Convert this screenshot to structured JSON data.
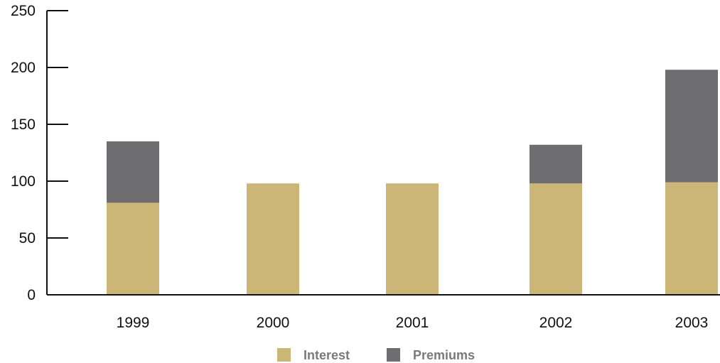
{
  "chart_data": {
    "type": "bar",
    "stacked": true,
    "categories": [
      "1999",
      "2000",
      "2001",
      "2002",
      "2003"
    ],
    "series": [
      {
        "name": "Interest",
        "color": "#cbb677",
        "values": [
          81,
          98,
          98,
          98,
          99
        ]
      },
      {
        "name": "Premiums",
        "color": "#6e6e70",
        "values": [
          54,
          0,
          0,
          34,
          99
        ]
      }
    ],
    "yticks": [
      0,
      50,
      100,
      150,
      200,
      250
    ],
    "ylim": [
      0,
      250
    ],
    "grid": false,
    "legend_position": "bottom-center",
    "title": "",
    "xlabel": "",
    "ylabel": ""
  }
}
